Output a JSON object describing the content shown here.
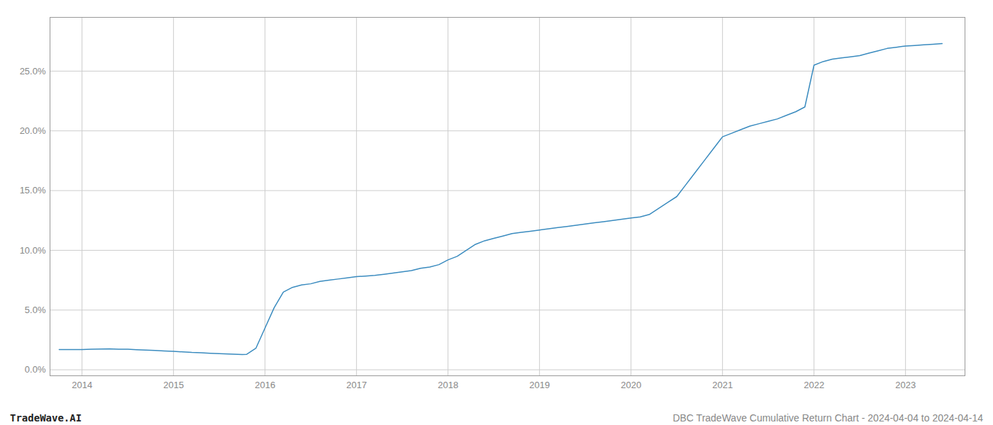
{
  "chart_data": {
    "type": "line",
    "title": "DBC TradeWave Cumulative Return Chart - 2024-04-04 to 2024-04-14",
    "annotations": [
      "TradeWave.AI"
    ],
    "x": [
      2013.75,
      2014.0,
      2014.1,
      2014.2,
      2014.3,
      2014.4,
      2014.5,
      2014.6,
      2014.7,
      2014.8,
      2014.9,
      2015.0,
      2015.1,
      2015.2,
      2015.3,
      2015.4,
      2015.5,
      2015.6,
      2015.7,
      2015.75,
      2015.8,
      2015.9,
      2016.0,
      2016.1,
      2016.2,
      2016.3,
      2016.4,
      2016.5,
      2016.6,
      2016.7,
      2016.8,
      2016.9,
      2017.0,
      2017.1,
      2017.2,
      2017.3,
      2017.4,
      2017.5,
      2017.6,
      2017.7,
      2017.8,
      2017.9,
      2018.0,
      2018.1,
      2018.2,
      2018.3,
      2018.4,
      2018.5,
      2018.6,
      2018.7,
      2018.8,
      2018.9,
      2019.0,
      2019.1,
      2019.2,
      2019.3,
      2019.4,
      2019.5,
      2019.6,
      2019.7,
      2019.8,
      2019.9,
      2020.0,
      2020.1,
      2020.2,
      2020.3,
      2020.4,
      2020.5,
      2020.6,
      2020.7,
      2020.8,
      2020.9,
      2021.0,
      2021.1,
      2021.2,
      2021.3,
      2021.4,
      2021.5,
      2021.6,
      2021.7,
      2021.8,
      2021.9,
      2022.0,
      2022.1,
      2022.2,
      2022.3,
      2022.4,
      2022.5,
      2022.6,
      2022.7,
      2022.8,
      2022.9,
      2023.0,
      2023.1,
      2023.2,
      2023.3,
      2023.4
    ],
    "values": [
      1.7,
      1.7,
      1.72,
      1.74,
      1.75,
      1.73,
      1.72,
      1.68,
      1.65,
      1.62,
      1.58,
      1.55,
      1.5,
      1.45,
      1.42,
      1.38,
      1.35,
      1.32,
      1.3,
      1.28,
      1.3,
      1.8,
      3.5,
      5.2,
      6.5,
      6.9,
      7.1,
      7.2,
      7.4,
      7.5,
      7.6,
      7.7,
      7.8,
      7.85,
      7.9,
      8.0,
      8.1,
      8.2,
      8.3,
      8.5,
      8.6,
      8.8,
      9.2,
      9.5,
      10.0,
      10.5,
      10.8,
      11.0,
      11.2,
      11.4,
      11.5,
      11.6,
      11.7,
      11.8,
      11.9,
      12.0,
      12.1,
      12.2,
      12.3,
      12.4,
      12.5,
      12.6,
      12.7,
      12.8,
      13.0,
      13.5,
      14.0,
      14.5,
      15.5,
      16.5,
      17.5,
      18.5,
      19.5,
      19.8,
      20.1,
      20.4,
      20.6,
      20.8,
      21.0,
      21.3,
      21.6,
      22.0,
      25.5,
      25.8,
      26.0,
      26.1,
      26.2,
      26.3,
      26.5,
      26.7,
      26.9,
      27.0,
      27.1,
      27.15,
      27.2,
      27.25,
      27.3
    ],
    "color": "#3a8bbf",
    "xlim": [
      2013.65,
      2023.65
    ],
    "xticks": [
      2014,
      2015,
      2016,
      2017,
      2018,
      2019,
      2020,
      2021,
      2022,
      2023
    ],
    "ylim": [
      -0.5,
      29.5
    ],
    "yticks": [
      {
        "value": 0.0,
        "label": "0.0%"
      },
      {
        "value": 5.0,
        "label": "5.0%"
      },
      {
        "value": 10.0,
        "label": "10.0%"
      },
      {
        "value": 15.0,
        "label": "15.0%"
      },
      {
        "value": 20.0,
        "label": "20.0%"
      },
      {
        "value": 25.0,
        "label": "25.0%"
      }
    ],
    "grid": true
  }
}
